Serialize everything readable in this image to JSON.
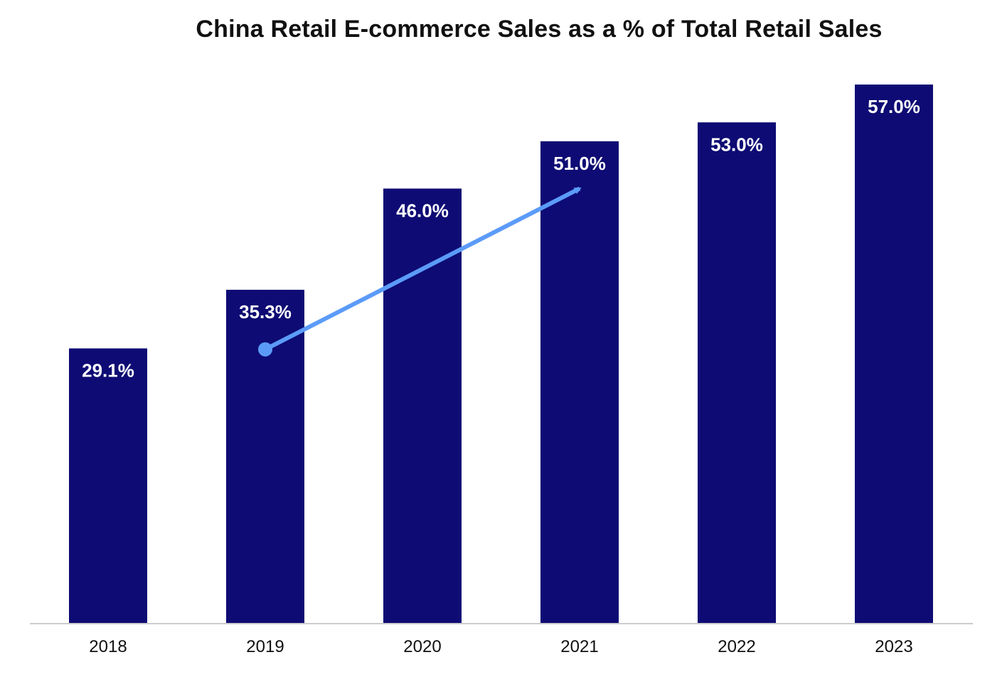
{
  "chart_data": {
    "type": "bar",
    "title": "China Retail E-commerce Sales as a % of Total Retail Sales",
    "categories": [
      "2018",
      "2019",
      "2020",
      "2021",
      "2022",
      "2023"
    ],
    "values": [
      29.1,
      35.3,
      46.0,
      51.0,
      53.0,
      57.0
    ],
    "data_labels": [
      "29.1%",
      "35.3%",
      "46.0%",
      "51.0%",
      "53.0%",
      "57.0%"
    ],
    "xlabel": "",
    "ylabel": "",
    "ylim": [
      0,
      57.0
    ],
    "grid": false,
    "colors": {
      "bar": "#0e0b74",
      "arrow": "#5b9bf8",
      "axis": "#cccccc"
    },
    "annotations": [
      {
        "type": "arrow",
        "from": {
          "x": "2019",
          "y": 29.0
        },
        "to": {
          "x": "2021",
          "y": 46.0
        }
      }
    ]
  }
}
